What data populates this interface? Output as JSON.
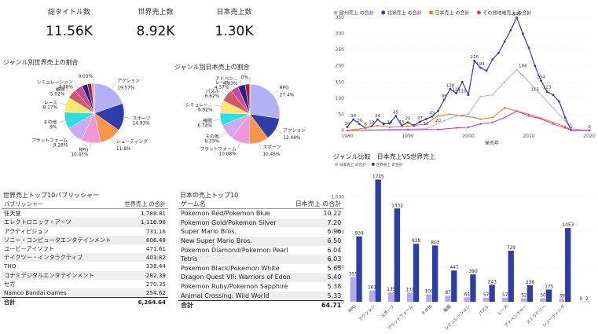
{
  "kpis": [
    {
      "label": "総タイトル数",
      "value": "11.56K"
    },
    {
      "label": "世界売上数",
      "value": "8.92K"
    },
    {
      "label": "日本売上数",
      "value": "1.30K"
    }
  ],
  "colors": {
    "pie": [
      "#b3b0f5",
      "#2e3ea8",
      "#f7954a",
      "#ef97d9",
      "#cfa8f2",
      "#2ddce9",
      "#fbe86a",
      "#d2586a",
      "#c64b9e",
      "#2c1f7f",
      "#9a2330",
      "#e08cb0",
      "#e5e5e5",
      "#1aab9d"
    ],
    "eu": "#b3a9f0",
    "na": "#2e3ea8",
    "jp": "#e4733e",
    "other": "#cc3a8a"
  },
  "chart_data": [
    {
      "type": "pie",
      "title": "ジャンル別世界売上の割合",
      "slices": [
        {
          "label": "アクション",
          "pct": "19.57%",
          "value": 19.57
        },
        {
          "label": "スポーツ",
          "pct": "14.93%",
          "value": 14.93
        },
        {
          "label": "シューティング",
          "pct": "11.8%",
          "value": 11.8
        },
        {
          "label": "RPG",
          "pct": "10.47%",
          "value": 10.47
        },
        {
          "label": "プラットフォーム",
          "pct": "9.28%",
          "value": 9.28
        },
        {
          "label": "その他",
          "pct": "9%",
          "value": 9.0
        },
        {
          "label": "レース",
          "pct": "8.17%",
          "value": 8.17
        },
        {
          "label": "格闘",
          "pct": "5.02%",
          "value": 5.02
        },
        {
          "label": "シミュレーション",
          "pct": "4.38%",
          "value": 4.38
        },
        {
          "label": "",
          "pct": "",
          "value": 3.0
        },
        {
          "label": "",
          "pct": "",
          "value": 2.2
        },
        {
          "label": "",
          "pct": "",
          "value": 1.5
        },
        {
          "label": "",
          "pct": "0.03%",
          "value": 0.03
        }
      ]
    },
    {
      "type": "pie",
      "title": "ジャンル別日本売上の割合",
      "slices": [
        {
          "label": "RPG",
          "pct": "27.4%",
          "value": 27.4
        },
        {
          "label": "アクション",
          "pct": "12.44%",
          "value": 12.44
        },
        {
          "label": "スポーツ",
          "pct": "10.45%",
          "value": 10.45
        },
        {
          "label": "プラットフォーム",
          "pct": "10.08%",
          "value": 10.08
        },
        {
          "label": "その他",
          "pct": "8.33%",
          "value": 8.33
        },
        {
          "label": "格闘",
          "pct": "6.74%",
          "value": 6.74
        },
        {
          "label": "シミュレー...",
          "pct": "6.92%",
          "value": 6.92
        },
        {
          "label": "パズル",
          "pct": "6.62%",
          "value": 6.62
        },
        {
          "label": "レース",
          "pct": "4.37%",
          "value": 4.37
        },
        {
          "label": "アドベン...",
          "pct": "4.03%",
          "value": 4.03
        },
        {
          "label": "",
          "pct": "",
          "value": 2.5
        },
        {
          "label": "",
          "pct": "0%",
          "value": 0.1
        }
      ]
    },
    {
      "type": "line",
      "xlabel": "発売年",
      "xlim": [
        1980,
        2020
      ],
      "ylim": [
        0,
        350
      ],
      "yticks": [
        0,
        50,
        100,
        150,
        200,
        250,
        300,
        350
      ],
      "xticks": [
        1980,
        1990,
        2000,
        2010,
        2020
      ],
      "series": [
        {
          "name": "欧州売上 の合計",
          "points": [
            [
              1980,
              0
            ],
            [
              1984,
              2
            ],
            [
              1987,
              3
            ],
            [
              1990,
              4
            ],
            [
              1993,
              5
            ],
            [
              1996,
              30
            ],
            [
              1998,
              45
            ],
            [
              2000,
              50
            ],
            [
              2002,
              105
            ],
            [
              2004,
              110
            ],
            [
              2006,
              150
            ],
            [
              2008,
              188
            ],
            [
              2009,
              170
            ],
            [
              2011,
              130
            ],
            [
              2014,
              70
            ],
            [
              2016,
              30
            ],
            [
              2017,
              5
            ],
            [
              2020,
              0
            ]
          ]
        },
        {
          "name": "北米売上 の合計",
          "points": [
            [
              1980,
              11
            ],
            [
              1981,
              34
            ],
            [
              1982,
              20
            ],
            [
              1983,
              8
            ],
            [
              1984,
              13
            ],
            [
              1985,
              34
            ],
            [
              1986,
              20
            ],
            [
              1987,
              22
            ],
            [
              1988,
              45
            ],
            [
              1989,
              15
            ],
            [
              1990,
              25
            ],
            [
              1991,
              15
            ],
            [
              1992,
              27
            ],
            [
              1993,
              35
            ],
            [
              1994,
              43
            ],
            [
              1995,
              60
            ],
            [
              1996,
              95
            ],
            [
              1997,
              128
            ],
            [
              1998,
              115
            ],
            [
              1999,
              150
            ],
            [
              2000,
              110
            ],
            [
              2001,
              216
            ],
            [
              2002,
              194
            ],
            [
              2003,
              185
            ],
            [
              2004,
              220
            ],
            [
              2005,
              240
            ],
            [
              2006,
              275
            ],
            [
              2007,
              310
            ],
            [
              2008,
              349
            ],
            [
              2009,
              300
            ],
            [
              2010,
              255
            ],
            [
              2011,
              200
            ],
            [
              2012,
              154
            ],
            [
              2013,
              120
            ],
            [
              2014,
              110
            ],
            [
              2015,
              90
            ],
            [
              2016,
              40
            ],
            [
              2017,
              1
            ],
            [
              2020,
              0
            ]
          ]
        },
        {
          "name": "日本売上 の合計",
          "points": [
            [
              1980,
              0
            ],
            [
              1983,
              8
            ],
            [
              1985,
              15
            ],
            [
              1987,
              10
            ],
            [
              1990,
              13
            ],
            [
              1993,
              20
            ],
            [
              1995,
              45
            ],
            [
              1997,
              50
            ],
            [
              1999,
              45
            ],
            [
              2001,
              40
            ],
            [
              2002,
              35
            ],
            [
              2004,
              40
            ],
            [
              2006,
              70
            ],
            [
              2008,
              60
            ],
            [
              2010,
              50
            ],
            [
              2012,
              38
            ],
            [
              2014,
              25
            ],
            [
              2016,
              12
            ],
            [
              2017,
              1
            ],
            [
              2020,
              0
            ]
          ]
        },
        {
          "name": "その他地域売上 の合計",
          "points": [
            [
              1980,
              0
            ],
            [
              1990,
              2
            ],
            [
              1995,
              3
            ],
            [
              1998,
              8
            ],
            [
              2000,
              10
            ],
            [
              2002,
              20
            ],
            [
              2004,
              25
            ],
            [
              2006,
              40
            ],
            [
              2008,
              60
            ],
            [
              2010,
              45
            ],
            [
              2012,
              36
            ],
            [
              2014,
              20
            ],
            [
              2016,
              8
            ],
            [
              2017,
              0
            ],
            [
              2020,
              0
            ]
          ]
        }
      ],
      "labels": [
        {
          "x": 1980,
          "y": 10,
          "t": "10"
        },
        {
          "x": 1981,
          "y": 34,
          "t": "34"
        },
        {
          "x": 1982,
          "y": 20,
          "t": "20"
        },
        {
          "x": 1983,
          "y": 8,
          "t": "8"
        },
        {
          "x": 1984,
          "y": 13,
          "t": "13"
        },
        {
          "x": 1985,
          "y": 34,
          "t": "34"
        },
        {
          "x": 1986,
          "y": 8,
          "t": "8"
        },
        {
          "x": 1987,
          "y": 14,
          "t": "14"
        },
        {
          "x": 1988,
          "y": 45,
          "t": "45"
        },
        {
          "x": 1989,
          "y": 15,
          "t": "15"
        },
        {
          "x": 1990,
          "y": 25,
          "t": "25"
        },
        {
          "x": 1991,
          "y": 4,
          "t": "4"
        },
        {
          "x": 1992,
          "y": 27,
          "t": "27"
        },
        {
          "x": 1993,
          "y": 10,
          "t": "10"
        },
        {
          "x": 1994,
          "y": 43,
          "t": "43"
        },
        {
          "x": 1995,
          "y": 20,
          "t": "20"
        },
        {
          "x": 1996,
          "y": 95,
          "t": "95"
        },
        {
          "x": 1997,
          "y": 128,
          "t": "128"
        },
        {
          "x": 1998,
          "y": 115,
          "t": "115"
        },
        {
          "x": 1999,
          "y": 110,
          "t": "110"
        },
        {
          "x": 2001,
          "y": 216,
          "t": "216"
        },
        {
          "x": 2002,
          "y": 194,
          "t": "194"
        },
        {
          "x": 2008,
          "y": 349,
          "t": "349"
        },
        {
          "x": 2009,
          "y": 188,
          "t": "188"
        },
        {
          "x": 2012,
          "y": 154,
          "t": "154"
        },
        {
          "x": 2013,
          "y": 123,
          "t": "123"
        },
        {
          "x": 2011,
          "y": 115,
          "t": "115"
        },
        {
          "x": 2017,
          "y": 1,
          "t": "1"
        },
        {
          "x": 2020,
          "y": 0,
          "t": "0"
        }
      ]
    },
    {
      "type": "bar",
      "title": "ジャンル比較　日本売上VS世界売上",
      "legend": [
        "日本売上 の合計",
        "世界売上 の合計"
      ],
      "ylim": [
        0,
        1750
      ],
      "yticks": [
        0,
        500,
        1000,
        1500
      ],
      "categories": [
        "RPG",
        "アクション",
        "スポーツ",
        "プラットフォーム",
        "その他",
        "格闘",
        "シミュレーション",
        "パズル",
        "レース",
        "アドベンチャー",
        "ストラテジー",
        "シューティング",
        ""
      ],
      "series": [
        {
          "name": "日本売上 の合計",
          "values": [
            355,
            161,
            135,
            131,
            108,
            87,
            64,
            57,
            57,
            52,
            50,
            39,
            0
          ]
        },
        {
          "name": "世界売上 の合計",
          "values": [
            934,
            1745,
            1332,
            828,
            803,
            447,
            390,
            243,
            729,
            238,
            175,
            1053,
            2
          ]
        }
      ]
    }
  ],
  "tables": {
    "publishers": {
      "title": "世界売上トップ10パブリッシャー",
      "headers": [
        "パブリッシャー",
        "世界売上 の合計"
      ],
      "rows": [
        [
          "任天堂",
          "1,788.81"
        ],
        [
          "エレクトロニック・アーツ",
          "1,116.96"
        ],
        [
          "アクティビジョン",
          "731.16"
        ],
        [
          "ソニー・コンピュータエンタテインメント",
          "606.48"
        ],
        [
          "ユービーアイソフト",
          "471.61"
        ],
        [
          "テイクツー・インタラクティブ",
          "403.82"
        ],
        [
          "THQ",
          "338.44"
        ],
        [
          "コナミデジタルエンタテインメント",
          "282.39"
        ],
        [
          "セガ",
          "270.35"
        ],
        [
          "Namco Bandai Games",
          "254.62"
        ]
      ],
      "total": [
        "合計",
        "6,264.64"
      ]
    },
    "jp_titles": {
      "title": "日本の売上トップ10",
      "headers": [
        "ゲーム名",
        "日本売上 の合計"
      ],
      "rows": [
        [
          "Pokemon Red/Pokemon Blue",
          "10.22"
        ],
        [
          "Pokemon Gold/Pokemon Silver",
          "7.20"
        ],
        [
          "Super Mario Bros.",
          "6.96"
        ],
        [
          "New Super Mario Bros.",
          "6.50"
        ],
        [
          "Pokemon Diamond/Pokemon Pearl",
          "6.04"
        ],
        [
          "Tetris",
          "6.03"
        ],
        [
          "Pokemon Black/Pokemon White",
          "5.65"
        ],
        [
          "Dragon Quest VII: Warriors of Eden",
          "5.40"
        ],
        [
          "Pokemon Ruby/Pokemon Sapphire",
          "5.38"
        ],
        [
          "Animal Crossing: Wild World",
          "5.33"
        ]
      ],
      "total": [
        "合計",
        "64.71"
      ]
    }
  }
}
